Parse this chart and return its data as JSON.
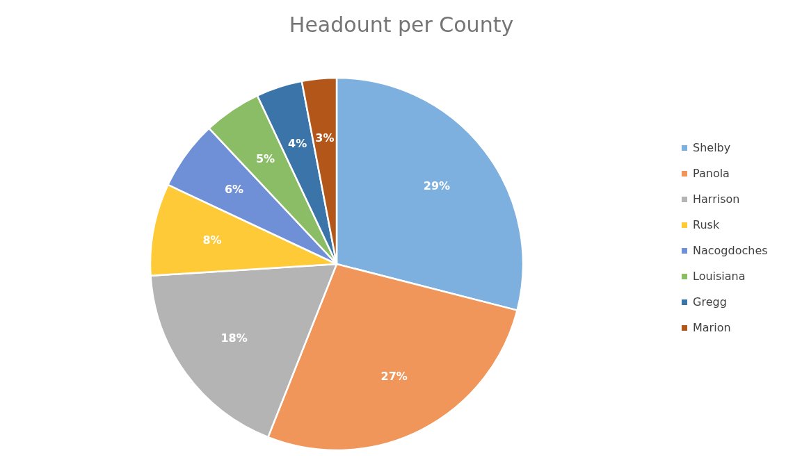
{
  "chart_data": {
    "type": "pie",
    "title": "Headount per County",
    "categories": [
      "Shelby",
      "Panola",
      "Harrison",
      "Rusk",
      "Nacogdoches",
      "Louisiana",
      "Gregg",
      "Marion"
    ],
    "values": [
      29,
      27,
      18,
      8,
      6,
      5,
      4,
      3
    ],
    "value_labels": [
      "29%",
      "27%",
      "18%",
      "8%",
      "6%",
      "5%",
      "4%",
      "3%"
    ],
    "colors": [
      "#7eb0df",
      "#f0965a",
      "#b4b4b4",
      "#ffca38",
      "#6f8fd6",
      "#8bbd66",
      "#3a74a9",
      "#b2561a"
    ],
    "legend": "right"
  }
}
